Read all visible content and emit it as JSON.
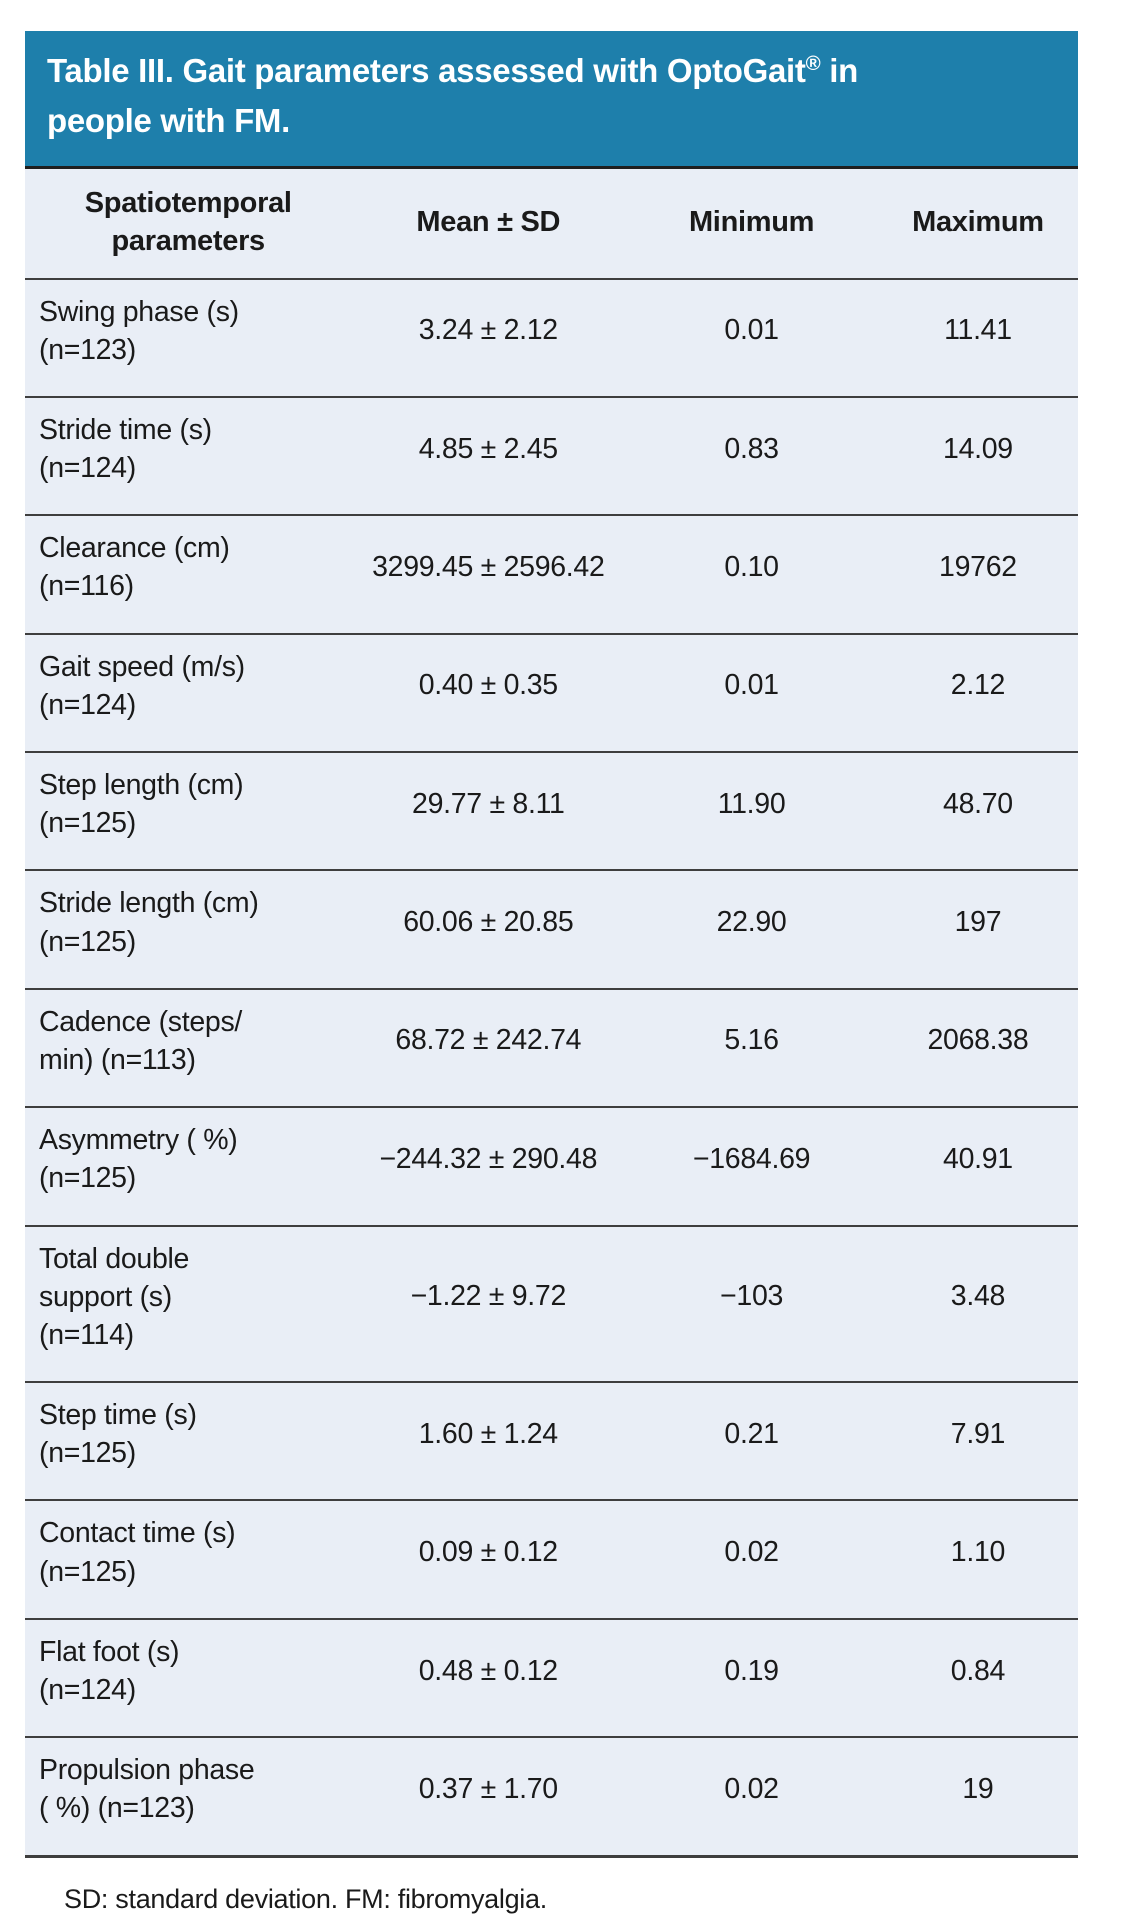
{
  "title": {
    "prefix": "Table III. Gait parameters assessed with OptoGait",
    "registered": "®",
    "suffix": " in\npeople with FM."
  },
  "table": {
    "columns": [
      "Spatiotemporal\nparameters",
      "Mean ± SD",
      "Minimum",
      "Maximum"
    ],
    "rows": [
      {
        "parameter": "Swing phase (s)\n(n=123)",
        "mean_sd": "3.24 ± 2.12",
        "minimum": "0.01",
        "maximum": "11.41"
      },
      {
        "parameter": "Stride time (s)\n(n=124)",
        "mean_sd": "4.85 ± 2.45",
        "minimum": "0.83",
        "maximum": "14.09"
      },
      {
        "parameter": "Clearance (cm)\n(n=116)",
        "mean_sd": "3299.45 ± 2596.42",
        "minimum": "0.10",
        "maximum": "19762"
      },
      {
        "parameter": "Gait speed (m/s)\n(n=124)",
        "mean_sd": "0.40 ± 0.35",
        "minimum": "0.01",
        "maximum": "2.12"
      },
      {
        "parameter": "Step length (cm)\n(n=125)",
        "mean_sd": "29.77 ± 8.11",
        "minimum": "11.90",
        "maximum": "48.70"
      },
      {
        "parameter": "Stride length (cm)\n(n=125)",
        "mean_sd": "60.06 ± 20.85",
        "minimum": "22.90",
        "maximum": "197"
      },
      {
        "parameter": "Cadence (steps/\nmin) (n=113)",
        "mean_sd": "68.72 ± 242.74",
        "minimum": "5.16",
        "maximum": "2068.38"
      },
      {
        "parameter": "Asymmetry ( %)\n(n=125)",
        "mean_sd": "−244.32 ± 290.48",
        "minimum": "−1684.69",
        "maximum": "40.91"
      },
      {
        "parameter": "Total double\nsupport (s)\n(n=114)",
        "mean_sd": "−1.22 ± 9.72",
        "minimum": "−103",
        "maximum": "3.48"
      },
      {
        "parameter": "Step time (s)\n(n=125)",
        "mean_sd": "1.60 ± 1.24",
        "minimum": "0.21",
        "maximum": "7.91"
      },
      {
        "parameter": "Contact time (s)\n(n=125)",
        "mean_sd": "0.09 ± 0.12",
        "minimum": "0.02",
        "maximum": "1.10"
      },
      {
        "parameter": "Flat foot (s)\n(n=124)",
        "mean_sd": "0.48 ± 0.12",
        "minimum": "0.19",
        "maximum": "0.84"
      },
      {
        "parameter": "Propulsion phase\n( %) (n=123)",
        "mean_sd": "0.37 ± 1.70",
        "minimum": "0.02",
        "maximum": "19"
      }
    ]
  },
  "footnote": "SD: standard deviation. FM: fibromyalgia.",
  "colors": {
    "title_bg": "#1e7fab",
    "title_text": "#ffffff",
    "body_bg": "#e9eef6",
    "rule": "#3e3e3e",
    "text": "#1a1a1a",
    "page_bg": "#ffffff"
  }
}
